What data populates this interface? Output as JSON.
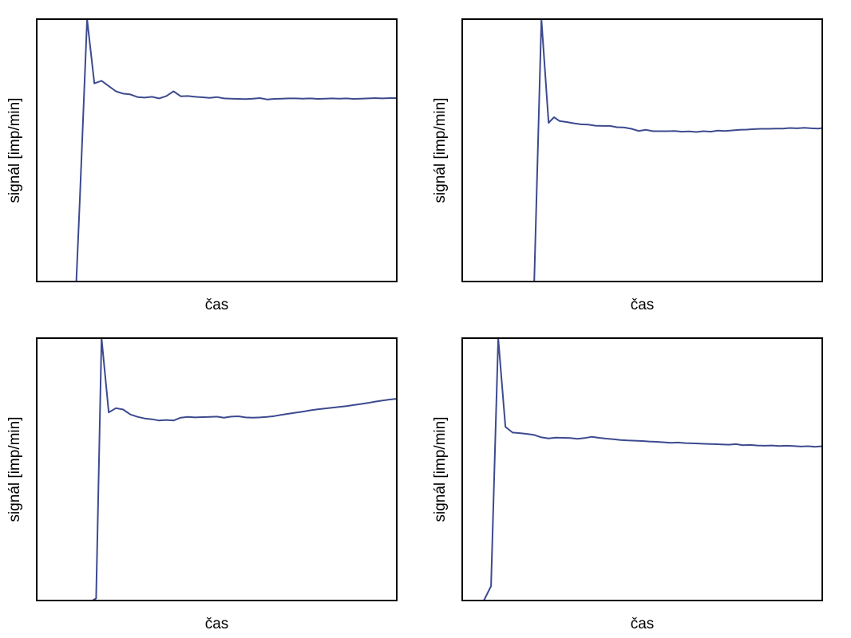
{
  "colors": {
    "line": "#3d4a8f",
    "frame": "#000000",
    "background": "#ffffff"
  },
  "chart_data": [
    {
      "type": "line",
      "xlabel": "čas",
      "ylabel": "signál [imp/min]",
      "xlim": [
        0,
        100
      ],
      "ylim": [
        0,
        100
      ],
      "grid": false,
      "series": [
        {
          "x": [
            0,
            11,
            12,
            14,
            16,
            18,
            20,
            22,
            24,
            26,
            28,
            30,
            32,
            34,
            36,
            38,
            40,
            42,
            44,
            46,
            48,
            50,
            52,
            54,
            56,
            58,
            60,
            62,
            64,
            66,
            68,
            70,
            72,
            74,
            76,
            78,
            80,
            82,
            84,
            86,
            88,
            90,
            92,
            94,
            96,
            98,
            100
          ],
          "y": [
            0,
            0,
            32,
            100,
            75.5,
            76.5,
            74.5,
            72.5,
            71.6,
            71.3,
            70.3,
            70.1,
            70.4,
            69.8,
            70.7,
            72.5,
            70.6,
            70.7,
            70.4,
            70.2,
            70.0,
            70.3,
            69.8,
            69.7,
            69.6,
            69.5,
            69.7,
            69.9,
            69.4,
            69.6,
            69.7,
            69.8,
            69.8,
            69.7,
            69.8,
            69.6,
            69.7,
            69.8,
            69.7,
            69.8,
            69.6,
            69.7,
            69.8,
            69.9,
            69.8,
            69.9,
            69.9
          ]
        }
      ]
    },
    {
      "type": "line",
      "xlabel": "čas",
      "ylabel": "signál [imp/min]",
      "xlim": [
        0,
        100
      ],
      "ylim": [
        0,
        100
      ],
      "grid": false,
      "series": [
        {
          "x": [
            0,
            20,
            22,
            24,
            25.5,
            27,
            29,
            31,
            33,
            35,
            37,
            39,
            41,
            43,
            45,
            47,
            49,
            51,
            53,
            55,
            57,
            59,
            61,
            63,
            65,
            67,
            69,
            71,
            73,
            75,
            77,
            79,
            81,
            83,
            85,
            87,
            89,
            91,
            93,
            95,
            97,
            99,
            100
          ],
          "y": [
            0,
            0,
            100,
            60.5,
            62.6,
            61.2,
            60.8,
            60.3,
            59.9,
            59.8,
            59.4,
            59.3,
            59.3,
            58.8,
            58.7,
            58.2,
            57.4,
            57.8,
            57.3,
            57.3,
            57.3,
            57.4,
            57.1,
            57.2,
            57.0,
            57.3,
            57.1,
            57.5,
            57.4,
            57.6,
            57.8,
            57.9,
            58.1,
            58.2,
            58.2,
            58.3,
            58.3,
            58.5,
            58.4,
            58.6,
            58.4,
            58.3,
            58.5
          ]
        }
      ]
    },
    {
      "type": "line",
      "xlabel": "čas",
      "ylabel": "signál [imp/min]",
      "xlim": [
        0,
        100
      ],
      "ylim": [
        0,
        100
      ],
      "grid": false,
      "series": [
        {
          "x": [
            0,
            15.5,
            16.5,
            18,
            20,
            22,
            24,
            26,
            28,
            30,
            32,
            34,
            36,
            38,
            40,
            42,
            44,
            46,
            48,
            50,
            52,
            54,
            56,
            58,
            60,
            62,
            64,
            66,
            68,
            70,
            72,
            74,
            76,
            78,
            80,
            82,
            84,
            86,
            88,
            90,
            92,
            94,
            96,
            98,
            100
          ],
          "y": [
            0,
            0,
            0.8,
            100,
            71.7,
            73.3,
            72.8,
            70.9,
            70.0,
            69.4,
            69.1,
            68.6,
            68.8,
            68.6,
            69.7,
            70.0,
            69.8,
            69.9,
            70.0,
            70.1,
            69.7,
            70.1,
            70.2,
            69.8,
            69.7,
            69.8,
            70.0,
            70.3,
            70.8,
            71.2,
            71.6,
            72.0,
            72.5,
            72.9,
            73.2,
            73.5,
            73.8,
            74.1,
            74.5,
            74.9,
            75.3,
            75.8,
            76.2,
            76.6,
            76.9
          ]
        }
      ]
    },
    {
      "type": "line",
      "xlabel": "čas",
      "ylabel": "signál [imp/min]",
      "xlim": [
        0,
        100
      ],
      "ylim": [
        0,
        100
      ],
      "grid": false,
      "series": [
        {
          "x": [
            6,
            8,
            10,
            12,
            14,
            16,
            18,
            20,
            22,
            24,
            26,
            28,
            30,
            32,
            34,
            36,
            38,
            40,
            42,
            44,
            46,
            48,
            50,
            52,
            54,
            56,
            58,
            60,
            62,
            64,
            66,
            68,
            70,
            72,
            74,
            76,
            78,
            80,
            82,
            84,
            86,
            88,
            90,
            92,
            94,
            96,
            98,
            100
          ],
          "y": [
            0,
            5.5,
            100,
            66.2,
            64.0,
            63.8,
            63.5,
            63.1,
            62.2,
            61.8,
            62.1,
            62.0,
            61.9,
            61.6,
            61.9,
            62.4,
            62.0,
            61.7,
            61.5,
            61.2,
            61.0,
            60.9,
            60.8,
            60.6,
            60.5,
            60.3,
            60.1,
            60.2,
            60.0,
            59.9,
            59.8,
            59.7,
            59.6,
            59.5,
            59.4,
            59.6,
            59.2,
            59.3,
            59.1,
            59.0,
            59.1,
            58.9,
            59.0,
            58.9,
            58.7,
            58.8,
            58.6,
            58.8
          ]
        }
      ]
    }
  ]
}
